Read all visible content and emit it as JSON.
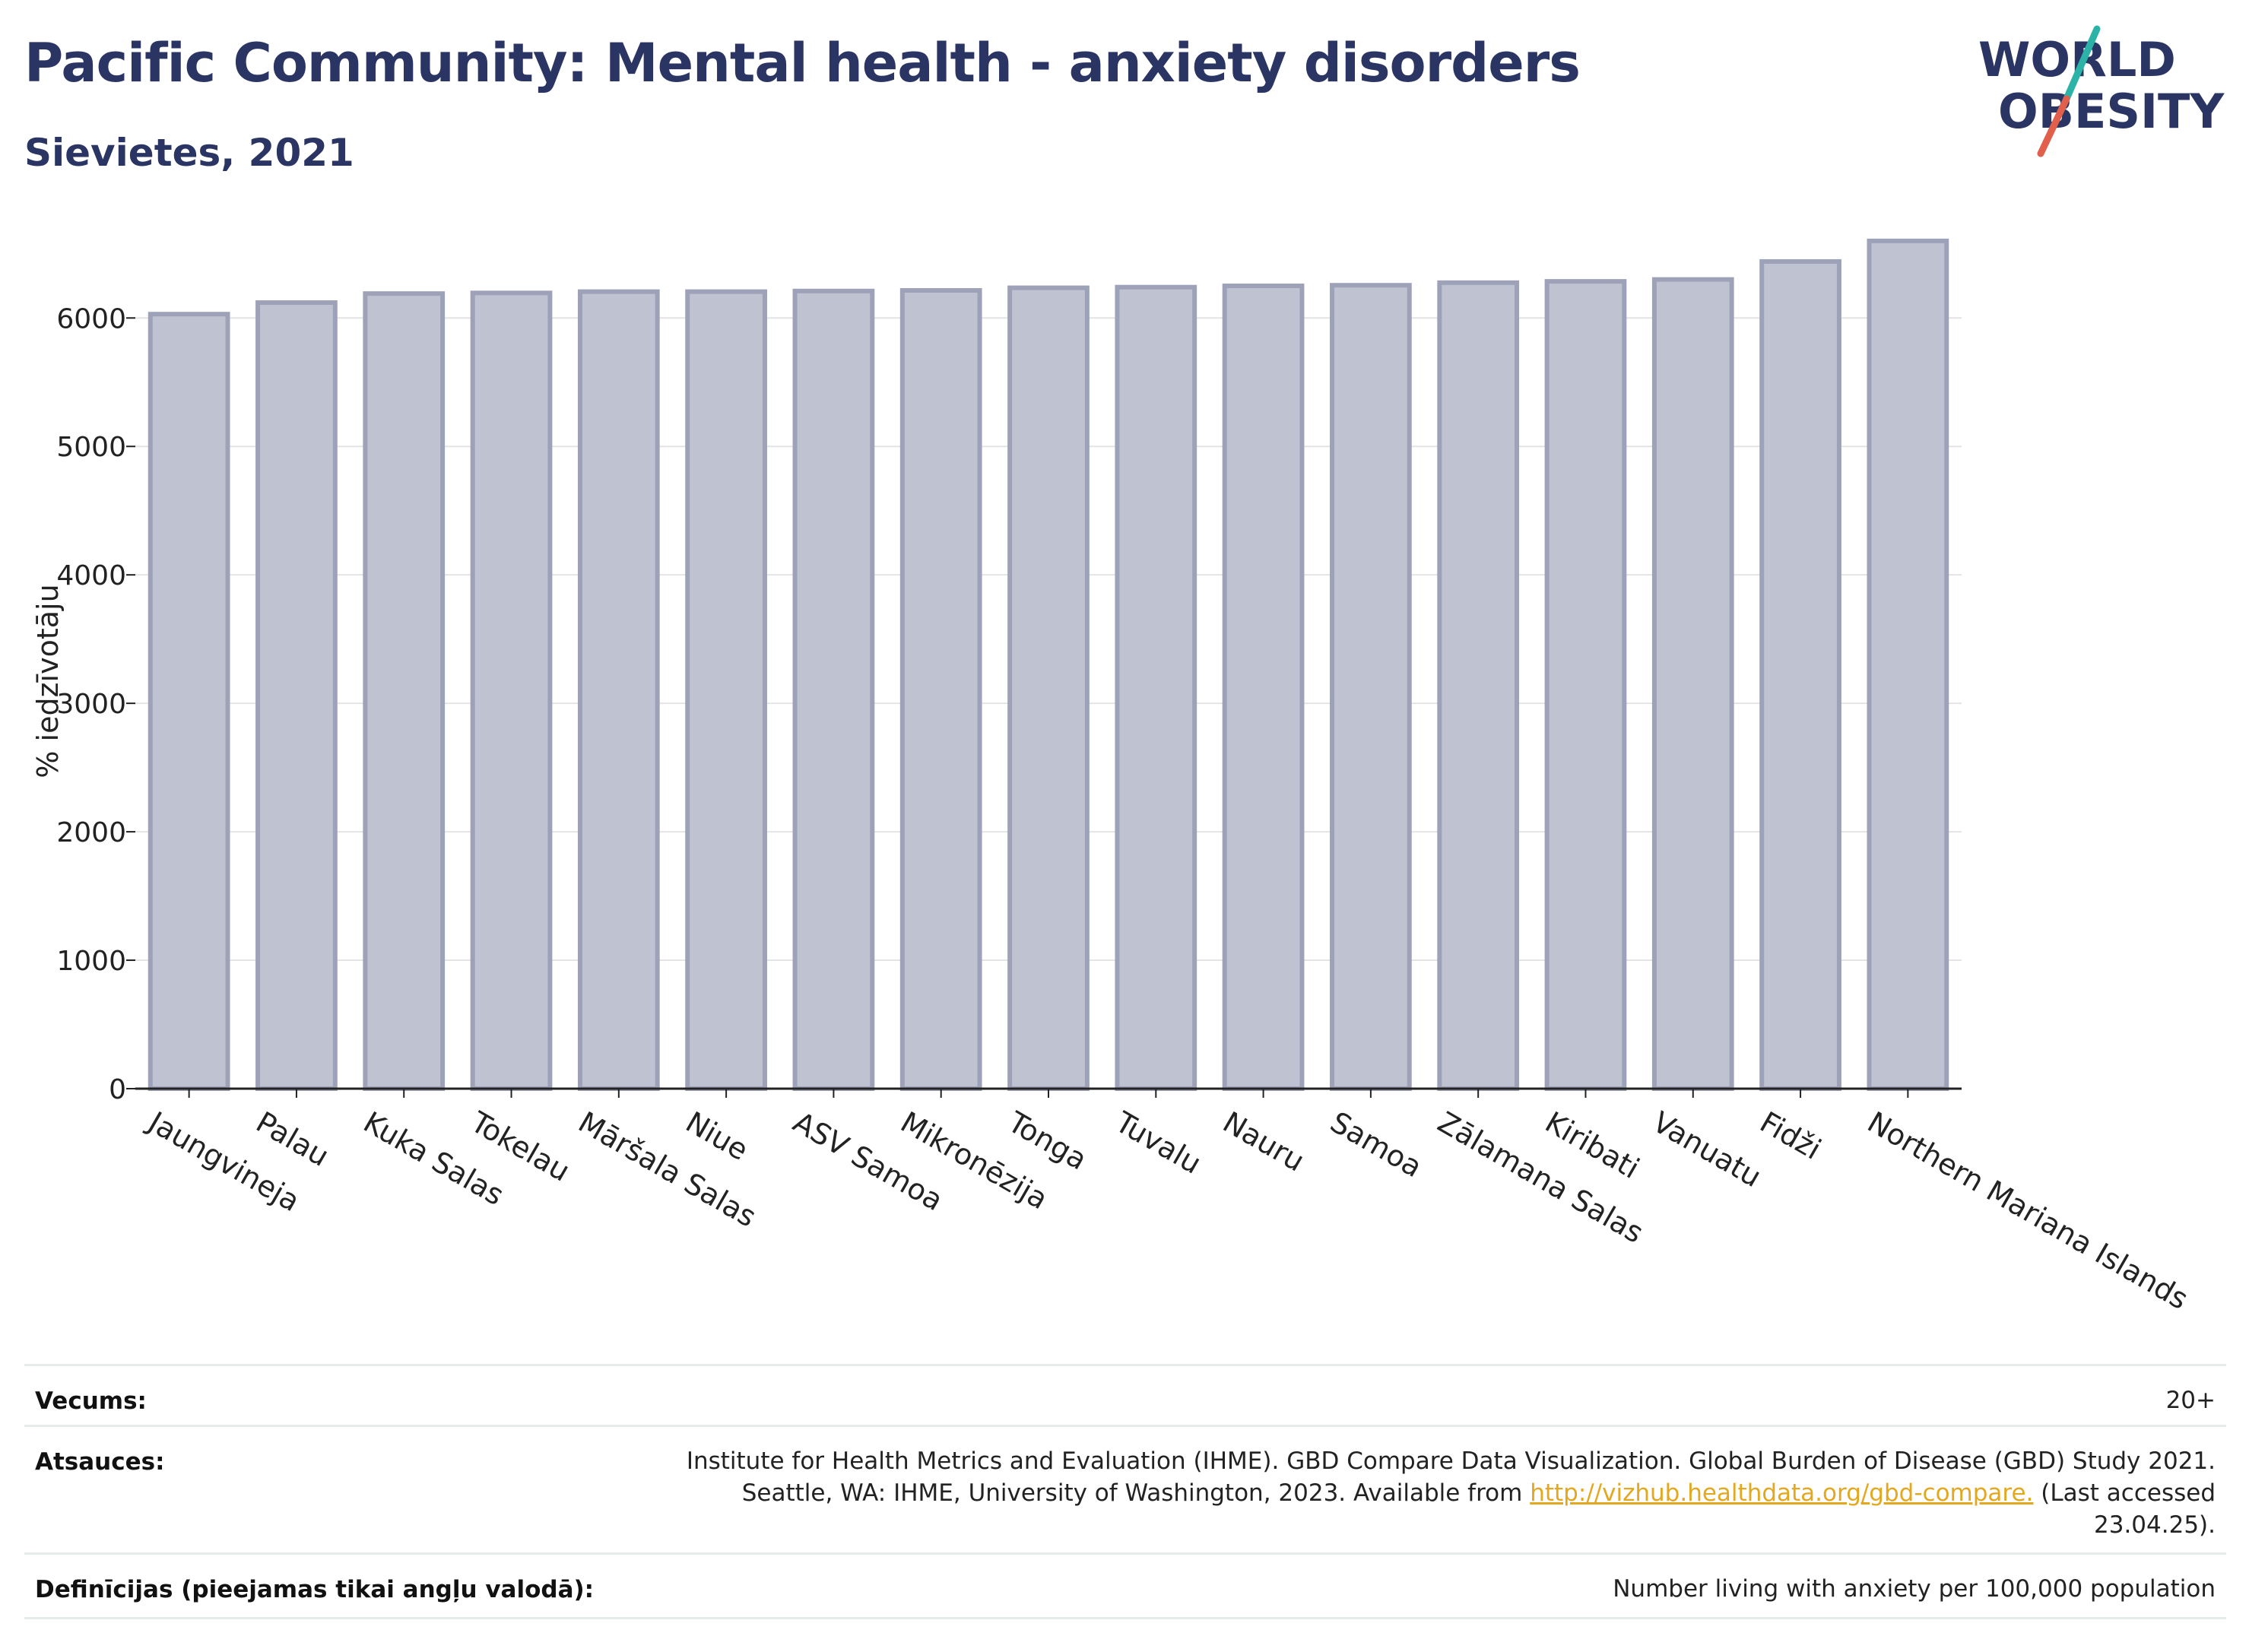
{
  "header": {
    "title": "Pacific Community: Mental health - anxiety disorders",
    "subtitle": "Sievietes, 2021",
    "logo_line1": "WORLD",
    "logo_line2": "OBESITY"
  },
  "chart_data": {
    "type": "bar",
    "title": "Pacific Community: Mental health - anxiety disorders",
    "subtitle": "Sievietes, 2021",
    "ylabel": "% iedzīvotāju",
    "xlabel": "",
    "ylim": [
      0,
      6700
    ],
    "yticks": [
      0,
      1000,
      2000,
      3000,
      4000,
      5000,
      6000
    ],
    "grid": true,
    "categories": [
      "Jaungvineja",
      "Palau",
      "Kuka Salas",
      "Tokelau",
      "Māršala Salas",
      "Niue",
      "ASV Samoa",
      "Mikronēzija",
      "Tonga",
      "Tuvalu",
      "Nauru",
      "Samoa",
      "Zālamana Salas",
      "Kiribati",
      "Vanuatu",
      "Fidži",
      "Northern Mariana Islands"
    ],
    "values": [
      6030,
      6120,
      6190,
      6195,
      6205,
      6205,
      6210,
      6215,
      6235,
      6240,
      6250,
      6255,
      6275,
      6285,
      6300,
      6440,
      6600
    ],
    "bar_color": "#bfc3d1",
    "bar_edge_color": "#9da2b9"
  },
  "footer": {
    "rows": [
      {
        "label": "Vecums:",
        "value": "20+"
      },
      {
        "label": "Atsauces:",
        "value_pre": "Institute for Health Metrics and Evaluation (IHME). GBD Compare Data Visualization. Global Burden of Disease (GBD) Study 2021. Seattle, WA: IHME, University of Washington, 2023. Available from ",
        "link": "http://vizhub.healthdata.org/gbd-compare.",
        "value_post": " (Last accessed 23.04.25)."
      },
      {
        "label": "Definīcijas (pieejamas tikai angļu valodā):",
        "value": "Number living with anxiety per 100,000 population"
      }
    ]
  },
  "colors": {
    "title": "#2a3563",
    "link": "#e3a81f",
    "logo_teal": "#2bb3a8",
    "logo_red": "#e0604c"
  }
}
